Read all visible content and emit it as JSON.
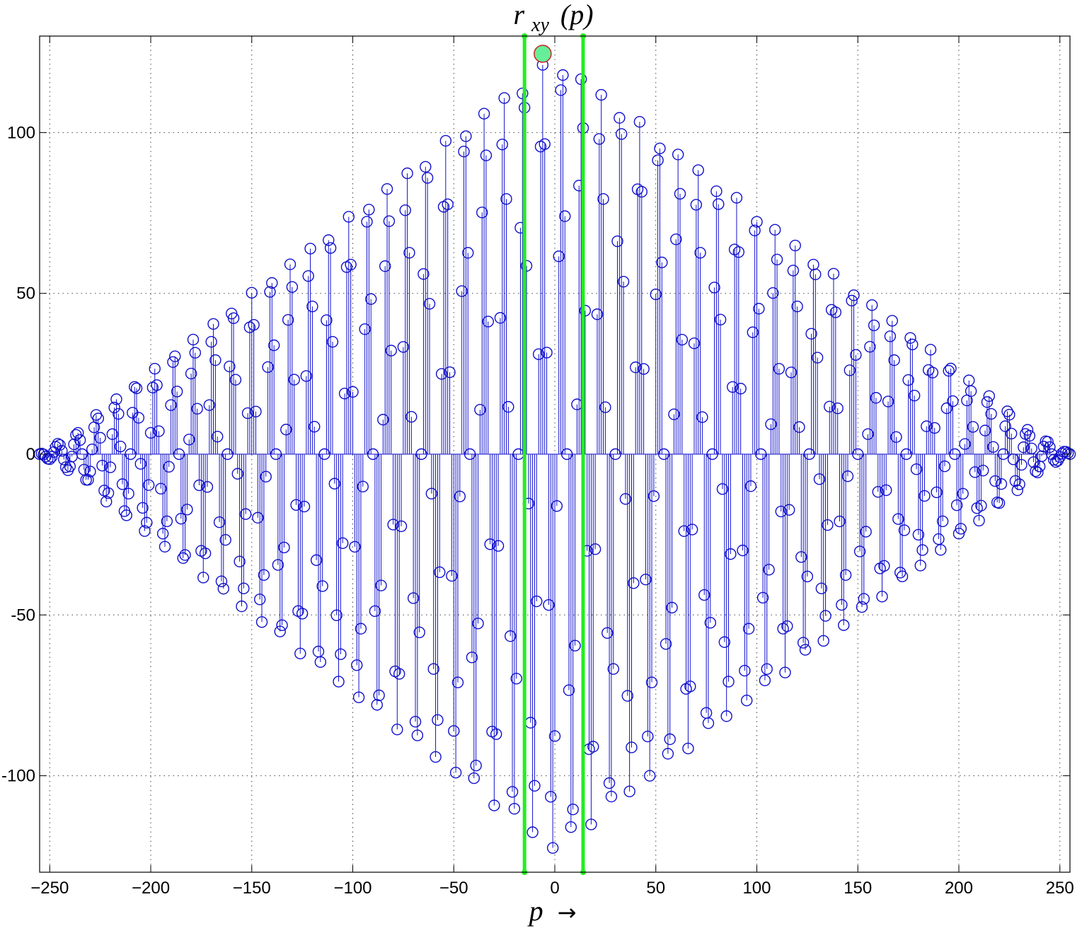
{
  "chart_data": {
    "type": "stem",
    "title": "r_xy (p)",
    "title_parts": {
      "base": "r",
      "sub": "xy",
      "arg": "(p)"
    },
    "xlabel": "p →",
    "xlabel_parts": {
      "var": "p",
      "arrow": "→"
    },
    "ylabel": "",
    "xlim": [
      -255,
      255
    ],
    "ylim": [
      -130,
      130
    ],
    "grid": true,
    "xticks": [
      -250,
      -200,
      -150,
      -100,
      -50,
      0,
      50,
      100,
      150,
      200,
      250
    ],
    "xtick_labels": [
      "−250",
      "−200",
      "−150",
      "−100",
      "−50",
      "0",
      "50",
      "100",
      "150",
      "200",
      "250"
    ],
    "yticks": [
      -100,
      -50,
      0,
      50,
      100
    ],
    "ytick_labels": [
      "-100",
      "-50",
      "0",
      "50",
      "100"
    ],
    "series": [
      {
        "style": "stem with circle markers",
        "color": "#1010cc",
        "generator_note": "",
        "x_range": [
          -255,
          255
        ],
        "step": 1
      }
    ],
    "vertical_lines": [
      {
        "x": -15,
        "y_from": -130,
        "y_to": 130,
        "color": "#22ee22"
      },
      {
        "x": 14,
        "y_from": -130,
        "y_to": 130,
        "color": "#22ee22"
      }
    ],
    "peak_marker": {
      "x": -6,
      "y": 124.5,
      "fill": "#66ee99",
      "stroke": "#cc2222"
    }
  }
}
